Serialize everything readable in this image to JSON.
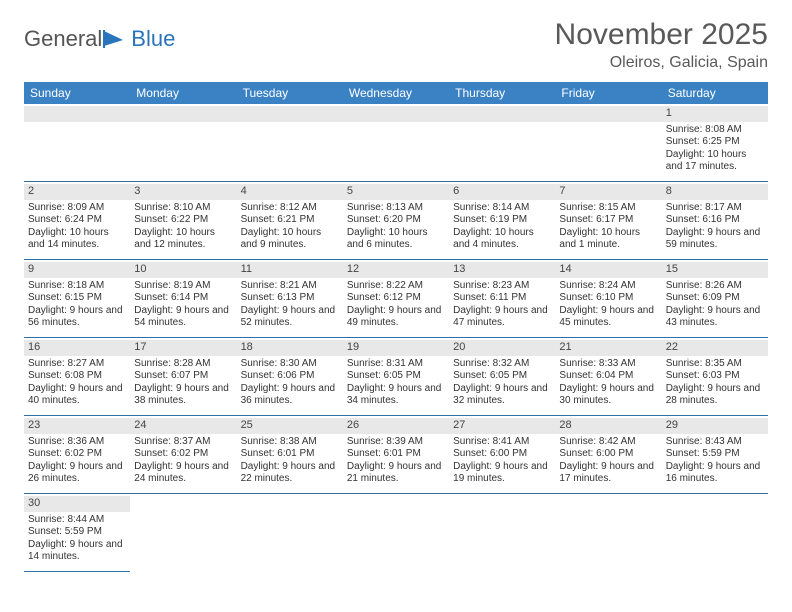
{
  "logo": {
    "text1": "General",
    "text2": "Blue"
  },
  "title": "November 2025",
  "location": "Oleiros, Galicia, Spain",
  "colors": {
    "header_bg": "#3b82c4",
    "border": "#2f6fa8",
    "daynum_bg": "#e8e8e8",
    "text": "#333333",
    "title_text": "#595959"
  },
  "weekdays": [
    "Sunday",
    "Monday",
    "Tuesday",
    "Wednesday",
    "Thursday",
    "Friday",
    "Saturday"
  ],
  "first_weekday_index": 6,
  "days": [
    {
      "n": 1,
      "sunrise": "8:08 AM",
      "sunset": "6:25 PM",
      "daylight": "10 hours and 17 minutes."
    },
    {
      "n": 2,
      "sunrise": "8:09 AM",
      "sunset": "6:24 PM",
      "daylight": "10 hours and 14 minutes."
    },
    {
      "n": 3,
      "sunrise": "8:10 AM",
      "sunset": "6:22 PM",
      "daylight": "10 hours and 12 minutes."
    },
    {
      "n": 4,
      "sunrise": "8:12 AM",
      "sunset": "6:21 PM",
      "daylight": "10 hours and 9 minutes."
    },
    {
      "n": 5,
      "sunrise": "8:13 AM",
      "sunset": "6:20 PM",
      "daylight": "10 hours and 6 minutes."
    },
    {
      "n": 6,
      "sunrise": "8:14 AM",
      "sunset": "6:19 PM",
      "daylight": "10 hours and 4 minutes."
    },
    {
      "n": 7,
      "sunrise": "8:15 AM",
      "sunset": "6:17 PM",
      "daylight": "10 hours and 1 minute."
    },
    {
      "n": 8,
      "sunrise": "8:17 AM",
      "sunset": "6:16 PM",
      "daylight": "9 hours and 59 minutes."
    },
    {
      "n": 9,
      "sunrise": "8:18 AM",
      "sunset": "6:15 PM",
      "daylight": "9 hours and 56 minutes."
    },
    {
      "n": 10,
      "sunrise": "8:19 AM",
      "sunset": "6:14 PM",
      "daylight": "9 hours and 54 minutes."
    },
    {
      "n": 11,
      "sunrise": "8:21 AM",
      "sunset": "6:13 PM",
      "daylight": "9 hours and 52 minutes."
    },
    {
      "n": 12,
      "sunrise": "8:22 AM",
      "sunset": "6:12 PM",
      "daylight": "9 hours and 49 minutes."
    },
    {
      "n": 13,
      "sunrise": "8:23 AM",
      "sunset": "6:11 PM",
      "daylight": "9 hours and 47 minutes."
    },
    {
      "n": 14,
      "sunrise": "8:24 AM",
      "sunset": "6:10 PM",
      "daylight": "9 hours and 45 minutes."
    },
    {
      "n": 15,
      "sunrise": "8:26 AM",
      "sunset": "6:09 PM",
      "daylight": "9 hours and 43 minutes."
    },
    {
      "n": 16,
      "sunrise": "8:27 AM",
      "sunset": "6:08 PM",
      "daylight": "9 hours and 40 minutes."
    },
    {
      "n": 17,
      "sunrise": "8:28 AM",
      "sunset": "6:07 PM",
      "daylight": "9 hours and 38 minutes."
    },
    {
      "n": 18,
      "sunrise": "8:30 AM",
      "sunset": "6:06 PM",
      "daylight": "9 hours and 36 minutes."
    },
    {
      "n": 19,
      "sunrise": "8:31 AM",
      "sunset": "6:05 PM",
      "daylight": "9 hours and 34 minutes."
    },
    {
      "n": 20,
      "sunrise": "8:32 AM",
      "sunset": "6:05 PM",
      "daylight": "9 hours and 32 minutes."
    },
    {
      "n": 21,
      "sunrise": "8:33 AM",
      "sunset": "6:04 PM",
      "daylight": "9 hours and 30 minutes."
    },
    {
      "n": 22,
      "sunrise": "8:35 AM",
      "sunset": "6:03 PM",
      "daylight": "9 hours and 28 minutes."
    },
    {
      "n": 23,
      "sunrise": "8:36 AM",
      "sunset": "6:02 PM",
      "daylight": "9 hours and 26 minutes."
    },
    {
      "n": 24,
      "sunrise": "8:37 AM",
      "sunset": "6:02 PM",
      "daylight": "9 hours and 24 minutes."
    },
    {
      "n": 25,
      "sunrise": "8:38 AM",
      "sunset": "6:01 PM",
      "daylight": "9 hours and 22 minutes."
    },
    {
      "n": 26,
      "sunrise": "8:39 AM",
      "sunset": "6:01 PM",
      "daylight": "9 hours and 21 minutes."
    },
    {
      "n": 27,
      "sunrise": "8:41 AM",
      "sunset": "6:00 PM",
      "daylight": "9 hours and 19 minutes."
    },
    {
      "n": 28,
      "sunrise": "8:42 AM",
      "sunset": "6:00 PM",
      "daylight": "9 hours and 17 minutes."
    },
    {
      "n": 29,
      "sunrise": "8:43 AM",
      "sunset": "5:59 PM",
      "daylight": "9 hours and 16 minutes."
    },
    {
      "n": 30,
      "sunrise": "8:44 AM",
      "sunset": "5:59 PM",
      "daylight": "9 hours and 14 minutes."
    }
  ],
  "labels": {
    "sunrise": "Sunrise:",
    "sunset": "Sunset:",
    "daylight": "Daylight:"
  }
}
